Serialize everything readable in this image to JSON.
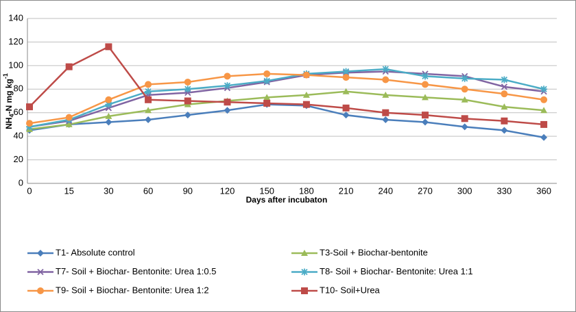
{
  "chart_data": {
    "type": "line",
    "ylabel": [
      "NH",
      "4",
      "-N mg kg",
      "-1"
    ],
    "xlabel": "Days after incubaton",
    "categories": [
      "0",
      "15",
      "30",
      "60",
      "90",
      "120",
      "150",
      "180",
      "210",
      "240",
      "270",
      "300",
      "330",
      "360"
    ],
    "ylim": [
      0,
      140
    ],
    "yticks": [
      0,
      20,
      40,
      60,
      80,
      100,
      120,
      140
    ],
    "grid": true,
    "series": [
      {
        "name": "T1- Absolute control",
        "color": "#4a7ebb",
        "marker": "diamond",
        "values": [
          45,
          50,
          52,
          54,
          58,
          62,
          67,
          66,
          58,
          54,
          52,
          48,
          45,
          39
        ]
      },
      {
        "name": "T3-Soil + Biochar-bentonite",
        "color": "#9bbb59",
        "marker": "triangle",
        "values": [
          46,
          50,
          57,
          62,
          67,
          70,
          73,
          75,
          78,
          75,
          73,
          71,
          65,
          62
        ]
      },
      {
        "name": "T7- Soil + Biochar- Bentonite: Urea 1:0.5",
        "color": "#8064a2",
        "marker": "x",
        "values": [
          48,
          53,
          64,
          75,
          77,
          81,
          86,
          92,
          94,
          95,
          93,
          91,
          82,
          78
        ]
      },
      {
        "name": "T8- Soil + Biochar- Bentonite: Urea 1:1",
        "color": "#4bacc6",
        "marker": "star",
        "values": [
          48,
          54,
          67,
          78,
          80,
          83,
          87,
          93,
          95,
          97,
          91,
          89,
          88,
          80
        ]
      },
      {
        "name": "T9- Soil + Biochar- Bentonite: Urea 1:2",
        "color": "#f79646",
        "marker": "circle",
        "values": [
          51,
          56,
          71,
          84,
          86,
          91,
          93,
          92,
          90,
          88,
          84,
          80,
          76,
          71
        ]
      },
      {
        "name": "T10- Soil+Urea",
        "color": "#be4b48",
        "marker": "square",
        "values": [
          65,
          99,
          116,
          71,
          70,
          69,
          68,
          67,
          64,
          60,
          58,
          55,
          53,
          50
        ]
      }
    ]
  }
}
